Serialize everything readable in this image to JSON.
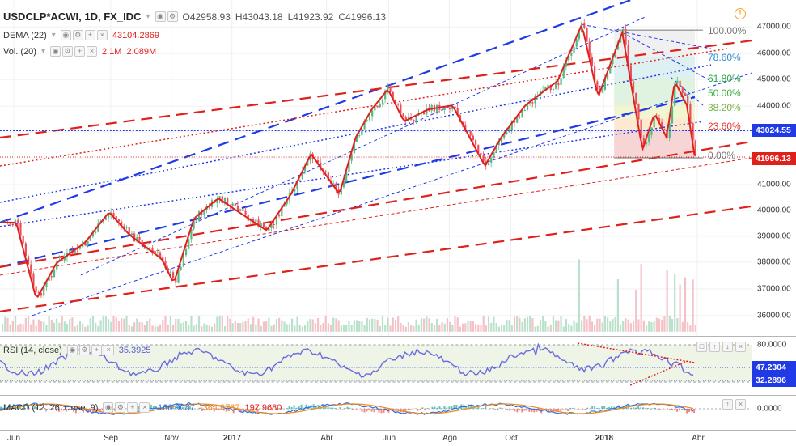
{
  "symbol": {
    "title": "USDCLP*ACWI, 1D, FX_IDC",
    "open": "O42958.93",
    "high": "H43043.18",
    "low": "L41923.92",
    "close": "C41996.13"
  },
  "indicators": {
    "dema": {
      "label": "DEMA (22)",
      "value": "43104.2869",
      "color": "#e0201b"
    },
    "vol": {
      "label": "Vol. (20)",
      "value1": "2.1M",
      "value2": "2.089M",
      "color": "#e0201b"
    },
    "rsi": {
      "label": "RSI (14, close)",
      "value": "35.3925",
      "color": "#5b5ed6"
    },
    "macd": {
      "label": "MACD (12, 26, close, 9)",
      "v1": "-166.9087",
      "v2": "-364.8767",
      "v3": "197.9680"
    }
  },
  "price_axis": {
    "ticks": [
      "47000.00",
      "46000.00",
      "45000.00",
      "44000.00",
      "43000.00",
      "42000.00",
      "41000.00",
      "40000.00",
      "39000.00",
      "38000.00",
      "37000.00",
      "36000.00"
    ],
    "tag_blue": "43024.55",
    "tag_red": "41996.13"
  },
  "rsi_axis": {
    "ticks": [
      "80.0000",
      "47.2304",
      "32.2896"
    ]
  },
  "macd_axis": {
    "ticks": [
      "0.0000"
    ]
  },
  "fib_levels": [
    {
      "label": "100.00%",
      "color": "#777777"
    },
    {
      "label": "78.60%",
      "color": "#2e8bd6"
    },
    {
      "label": "61.80%",
      "color": "#28a745"
    },
    {
      "label": "50.00%",
      "color": "#3cb043"
    },
    {
      "label": "38.20%",
      "color": "#7cb342"
    },
    {
      "label": "23.60%",
      "color": "#e53935"
    },
    {
      "label": "0.00%",
      "color": "#777777"
    }
  ],
  "time_axis": [
    "Jun",
    "Sep",
    "Nov",
    "2017",
    "Abr",
    "Jun",
    "Ago",
    "Oct",
    "2018",
    "Abr"
  ],
  "colors": {
    "up": "#53b987",
    "down": "#eb4d5c",
    "dema": "#e0201b",
    "blue_line": "#1f3ae6",
    "red_line": "#e0201b",
    "rsi_line": "#6b6be0"
  }
}
